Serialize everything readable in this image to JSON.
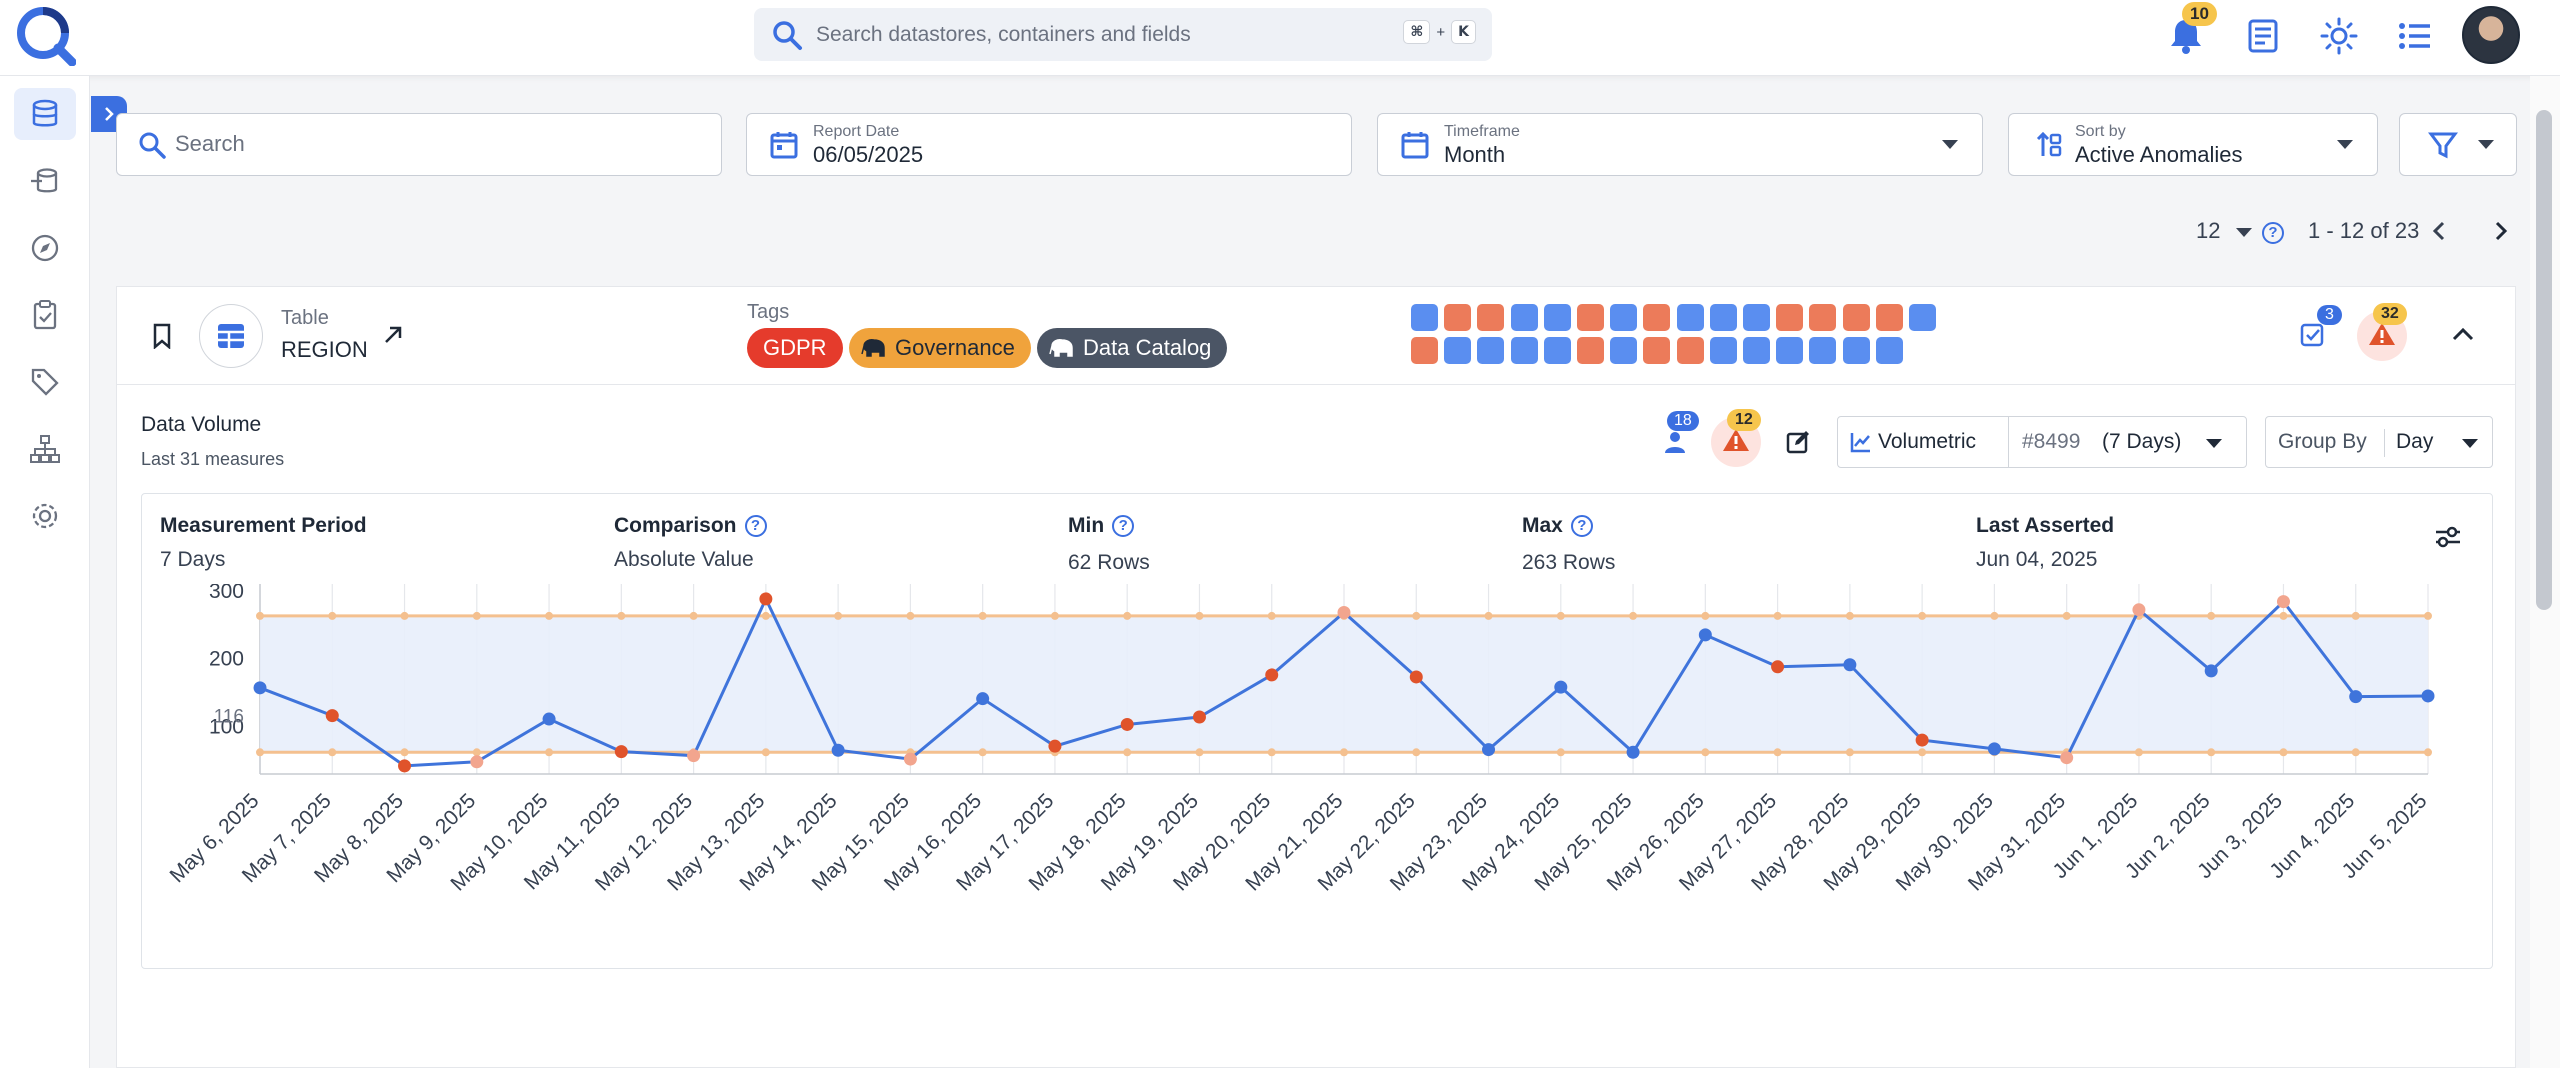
{
  "search": {
    "placeholder": "Search datastores, containers and fields",
    "kbd_cmd": "⌘",
    "kbd_plus": "+",
    "kbd_k": "K"
  },
  "notifications": {
    "count": "10"
  },
  "filters": {
    "search_placeholder": "Search",
    "report_date_label": "Report Date",
    "report_date_value": "06/05/2025",
    "timeframe_label": "Timeframe",
    "timeframe_value": "Month",
    "sort_label": "Sort by",
    "sort_value": "Active Anomalies"
  },
  "pagination": {
    "page_size": "12",
    "range": "1 - 12 of 23"
  },
  "container": {
    "type_label": "Table",
    "name": "REGION",
    "tags_label": "Tags",
    "tags": [
      {
        "label": "GDPR",
        "color": "#e53b2c"
      },
      {
        "label": "Governance",
        "color": "#f0a33c"
      },
      {
        "label": "Data Catalog",
        "color": "#4b5565"
      }
    ],
    "checks_count": "3",
    "anomalies_count": "32",
    "status_rows": [
      [
        "blue",
        "orange",
        "orange",
        "blue",
        "blue",
        "orange",
        "blue",
        "orange",
        "blue",
        "blue",
        "blue",
        "orange",
        "orange",
        "orange",
        "orange",
        "blue"
      ],
      [
        "orange",
        "blue",
        "blue",
        "blue",
        "blue",
        "orange",
        "blue",
        "orange",
        "orange",
        "blue",
        "blue",
        "blue",
        "blue",
        "blue",
        "blue"
      ]
    ]
  },
  "colors": {
    "accent": "#3b6fe0",
    "orange": "#ec7b5a",
    "blue": "#5a8ef0",
    "threshold": "#f4c08f",
    "anomaly": "#e0532b"
  },
  "profile": {
    "title": "Data Volume",
    "subtitle": "Last 31 measures",
    "checks_badge": "18",
    "anomaly_badge": "12",
    "metric_label": "Volumetric",
    "check_id": "#8499",
    "check_window": "(7 Days)",
    "group_by_label": "Group By",
    "group_by_value": "Day"
  },
  "stats": {
    "period_title": "Measurement Period",
    "period_value": "7 Days",
    "comparison_title": "Comparison",
    "comparison_value": "Absolute Value",
    "min_title": "Min",
    "min_value": "62 Rows",
    "max_title": "Max",
    "max_value": "263 Rows",
    "asserted_title": "Last Asserted",
    "asserted_value": "Jun 04, 2025"
  },
  "chart_data": {
    "type": "line",
    "x": [
      "May 6, 2025",
      "May 7, 2025",
      "May 8, 2025",
      "May 9, 2025",
      "May 10, 2025",
      "May 11, 2025",
      "May 12, 2025",
      "May 13, 2025",
      "May 14, 2025",
      "May 15, 2025",
      "May 16, 2025",
      "May 17, 2025",
      "May 18, 2025",
      "May 19, 2025",
      "May 20, 2025",
      "May 21, 2025",
      "May 22, 2025",
      "May 23, 2025",
      "May 24, 2025",
      "May 25, 2025",
      "May 26, 2025",
      "May 27, 2025",
      "May 28, 2025",
      "May 29, 2025",
      "May 30, 2025",
      "May 31, 2025",
      "Jun 1, 2025",
      "Jun 2, 2025",
      "Jun 3, 2025",
      "Jun 4, 2025",
      "Jun 5, 2025"
    ],
    "values": [
      157,
      116,
      42,
      48,
      111,
      63,
      57,
      288,
      65,
      52,
      141,
      71,
      103,
      114,
      176,
      268,
      173,
      66,
      158,
      62,
      235,
      188,
      191,
      80,
      67,
      54,
      272,
      182,
      284,
      144,
      145
    ],
    "anomaly_points": [
      1,
      2,
      5,
      7,
      11,
      12,
      13,
      14,
      16,
      21,
      23
    ],
    "upper_threshold": 263,
    "lower_threshold": 62,
    "y_ticks": [
      100,
      200,
      300
    ],
    "y_marker": "116",
    "ylim": [
      30,
      310
    ]
  }
}
